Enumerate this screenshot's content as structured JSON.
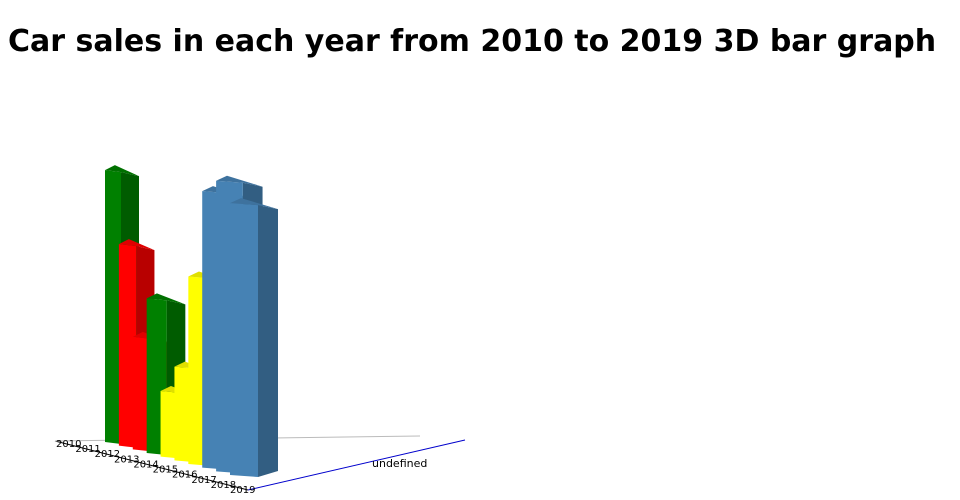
{
  "chart_data": {
    "type": "bar",
    "title": "Car sales in each year from 2010 to 2019 3D bar graph",
    "x": [
      "2010",
      "2011",
      "2012",
      "2013",
      "2014",
      "2015",
      "2016",
      "2017",
      "2018",
      "2019"
    ],
    "category_label": "undefined",
    "values": [
      290,
      215,
      120,
      165,
      70,
      100,
      200,
      295,
      310,
      290
    ],
    "ylim": [
      0,
      320
    ],
    "grid": false,
    "legend": "none",
    "colors": [
      "#008000",
      "#ff0000",
      "#ff0000",
      "#008000",
      "#ffff00",
      "#ffff00",
      "#ffff00",
      "#4682b4",
      "#4682b4",
      "#4682b4"
    ]
  }
}
